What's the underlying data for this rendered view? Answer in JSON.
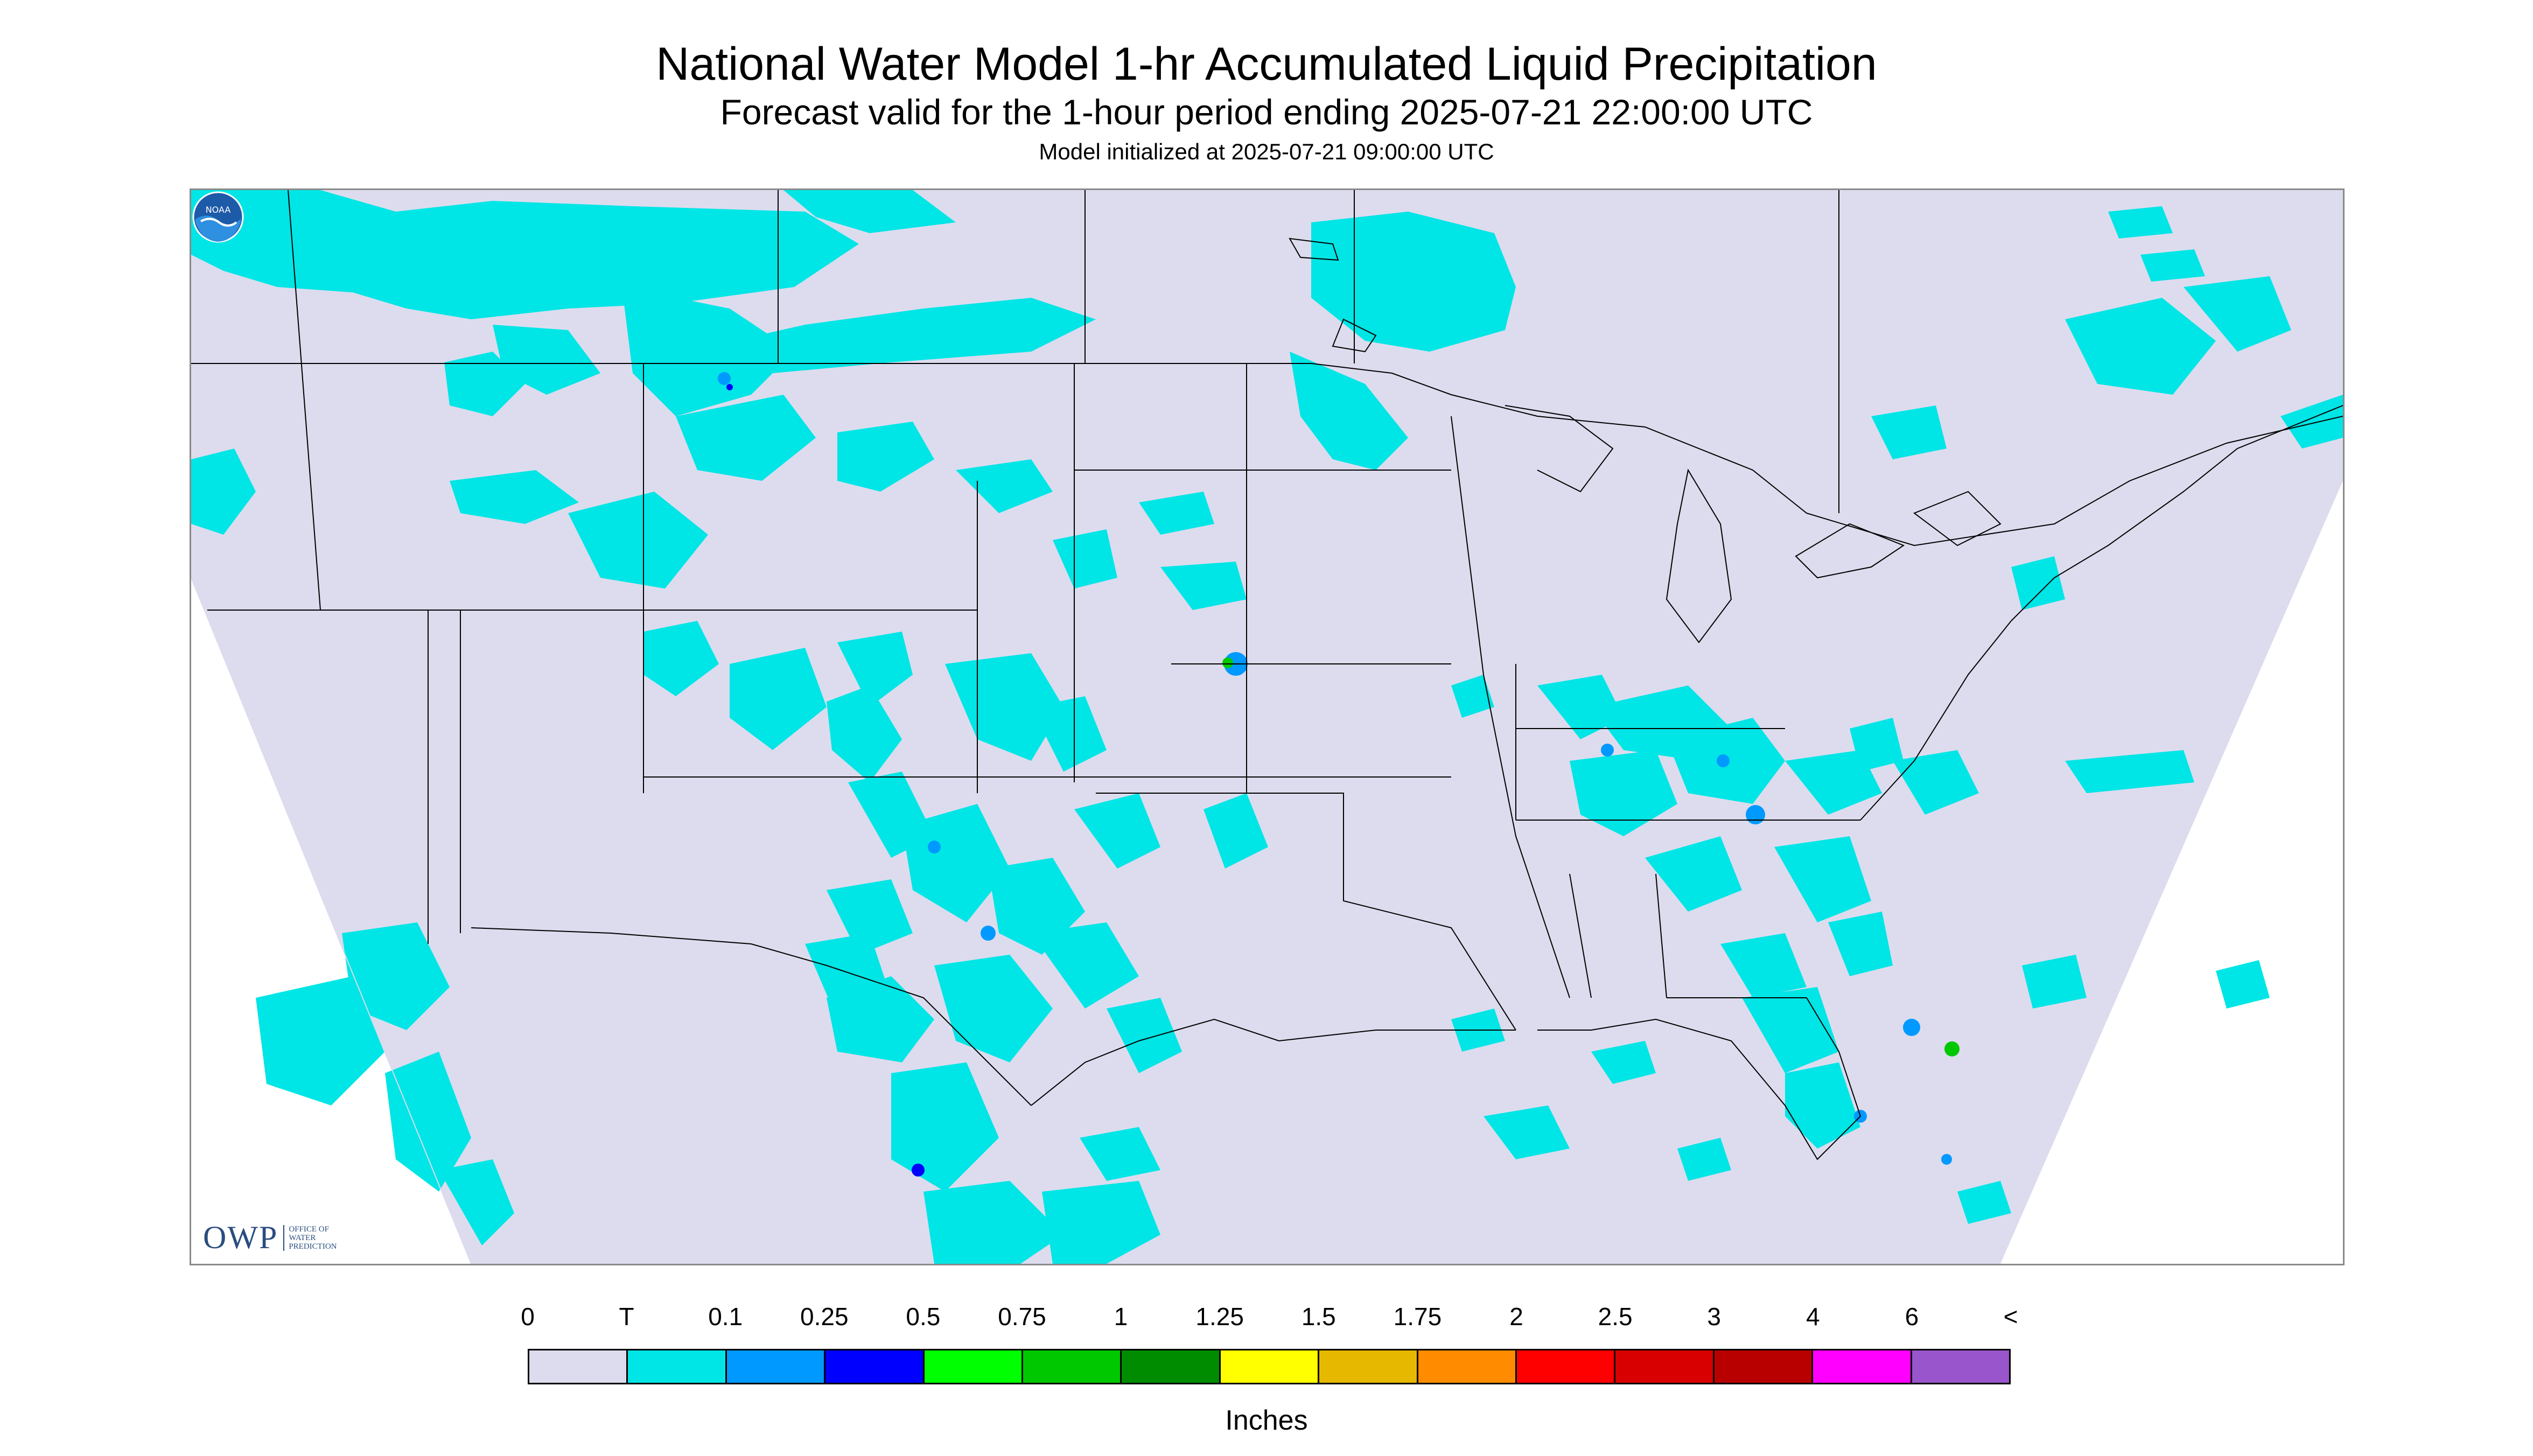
{
  "title": "National Water Model 1-hr Accumulated Liquid Precipitation",
  "subtitle": "Forecast valid for the 1-hour period ending 2025-07-21 22:00:00 UTC",
  "init_line": "Model initialized at 2025-07-21 09:00:00 UTC",
  "logos": {
    "owp_mark": "OWP",
    "owp_text": "OFFICE OF WATER PREDICTION",
    "noaa": "NOAA"
  },
  "legend": {
    "labels": [
      "0",
      "T",
      "0.1",
      "0.25",
      "0.5",
      "0.75",
      "1",
      "1.25",
      "1.5",
      "1.75",
      "2",
      "2.5",
      "3",
      "4",
      "6",
      "<"
    ],
    "colors": [
      "#dcdcee",
      "#00e5e5",
      "#0099ff",
      "#0000ff",
      "#00ff00",
      "#00c800",
      "#008c00",
      "#ffff00",
      "#e6b800",
      "#ff8c00",
      "#ff0000",
      "#d80000",
      "#b80000",
      "#ff00ff",
      "#9955cc"
    ],
    "units": "Inches"
  },
  "map": {
    "background_color": "#dcdcee",
    "outside_domain_color": "#ffffff",
    "dominant_precip_color": "#00e5e5",
    "boundary_color": "#000000"
  }
}
